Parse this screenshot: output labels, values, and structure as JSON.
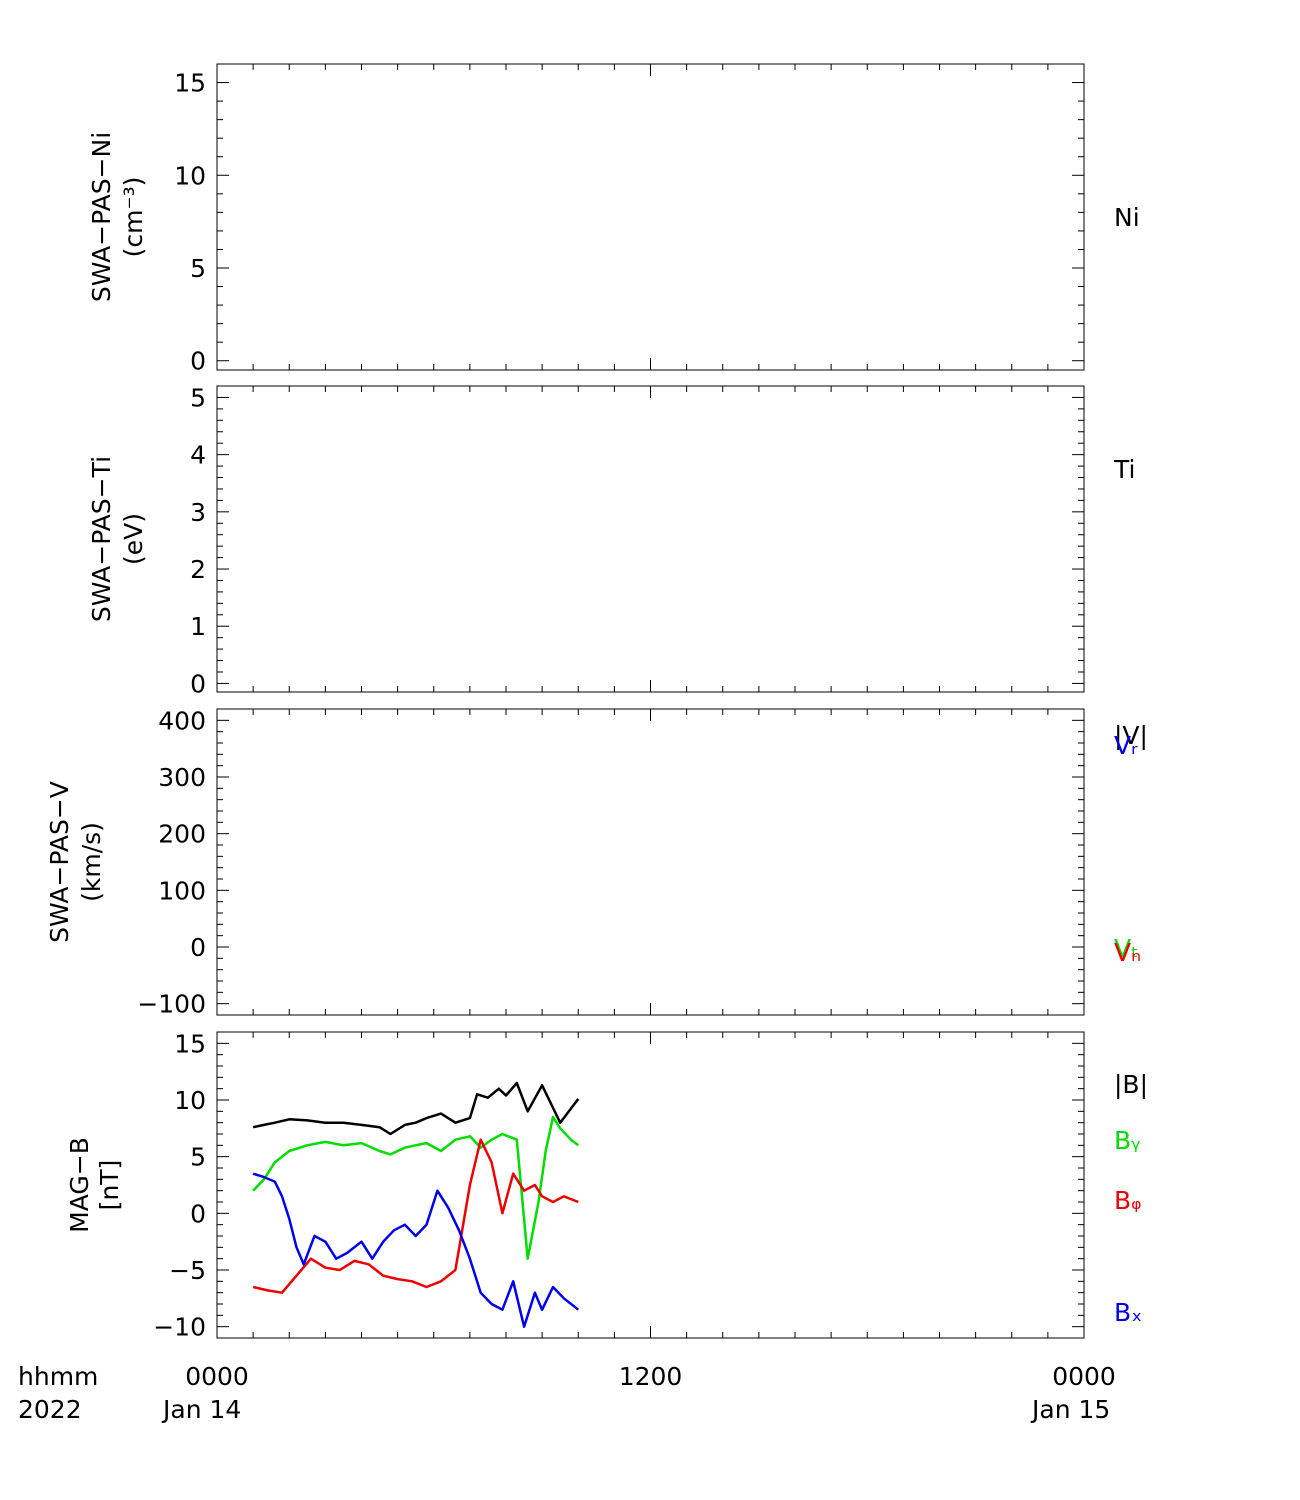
{
  "footer": {
    "time_label": "hhmm",
    "year_label": "2022",
    "date_start": "Jan 14",
    "date_end": "Jan 15"
  },
  "x_axis": {
    "range_hours": [
      0,
      24
    ],
    "major_ticks": [
      {
        "hour": 0,
        "label": "0000"
      },
      {
        "hour": 12,
        "label": "1200"
      },
      {
        "hour": 24,
        "label": "0000"
      }
    ],
    "minor_tick_every_hours": 1
  },
  "colors": {
    "black": "#000000",
    "green": "#00dd00",
    "red": "#ee0000",
    "blue": "#0000ee"
  },
  "chart_data": [
    {
      "type": "line",
      "ylabel": "SWA−PAS−Ni",
      "ylabel2": "(cm⁻³)",
      "ylim": [
        -0.5,
        16
      ],
      "yticks": [
        0,
        5,
        10,
        15
      ],
      "series": [],
      "legend": [
        {
          "label": "Ni",
          "color": "#000000"
        }
      ]
    },
    {
      "type": "line",
      "ylabel": "SWA−PAS−Ti",
      "ylabel2": "(eV)",
      "ylim": [
        -0.15,
        5.2
      ],
      "yticks": [
        0,
        1,
        2,
        3,
        4,
        5
      ],
      "series": [],
      "legend": [
        {
          "label": "Ti",
          "color": "#000000"
        }
      ]
    },
    {
      "type": "line",
      "ylabel": "SWA−PAS−V",
      "ylabel2": "(km/s)",
      "ylim": [
        -120,
        420
      ],
      "yticks": [
        -100,
        0,
        100,
        200,
        300,
        400
      ],
      "series": [],
      "legend": [
        {
          "label": "|V|",
          "color": "#000000"
        },
        {
          "label": "Vᵣ",
          "color": "#0000ee"
        },
        {
          "label": "Vₜ",
          "color": "#00dd00"
        },
        {
          "label": "Vₙ",
          "color": "#ee0000"
        }
      ]
    },
    {
      "type": "line",
      "ylabel": "MAG−B",
      "ylabel2": "[nT]",
      "ylim": [
        -11,
        16
      ],
      "yticks": [
        -10,
        -5,
        0,
        5,
        10,
        15
      ],
      "legend": [
        {
          "label": "|B|",
          "color": "#000000"
        },
        {
          "label": "Bᵧ",
          "color": "#00dd00"
        },
        {
          "label": "Bᵩ",
          "color": "#ee0000"
        },
        {
          "label": "Bₓ",
          "color": "#0000ee"
        }
      ],
      "series": [
        {
          "name": "|B|",
          "color": "#000000",
          "x": [
            1.0,
            1.3,
            1.6,
            2.0,
            2.5,
            3.0,
            3.5,
            4.0,
            4.5,
            4.8,
            5.2,
            5.5,
            5.8,
            6.2,
            6.6,
            7.0,
            7.2,
            7.5,
            7.8,
            8.0,
            8.3,
            8.6,
            9.0,
            9.5,
            10.0
          ],
          "y": [
            7.6,
            7.8,
            8.0,
            8.3,
            8.2,
            8.0,
            8.0,
            7.8,
            7.6,
            7.0,
            7.8,
            8.0,
            8.4,
            8.8,
            8.0,
            8.4,
            10.5,
            10.2,
            11.0,
            10.4,
            11.5,
            9.0,
            11.3,
            8.0,
            10.1
          ]
        },
        {
          "name": "B_Y",
          "color": "#00dd00",
          "x": [
            1.0,
            1.3,
            1.6,
            2.0,
            2.5,
            3.0,
            3.5,
            4.0,
            4.5,
            4.8,
            5.2,
            5.5,
            5.8,
            6.2,
            6.6,
            7.0,
            7.3,
            7.6,
            7.9,
            8.3,
            8.6,
            8.9,
            9.1,
            9.3,
            9.5,
            9.8,
            10.0
          ],
          "y": [
            2.0,
            3.0,
            4.5,
            5.5,
            6.0,
            6.3,
            6.0,
            6.2,
            5.5,
            5.2,
            5.8,
            6.0,
            6.2,
            5.5,
            6.5,
            6.8,
            5.8,
            6.5,
            7.0,
            6.5,
            -4.0,
            1.0,
            5.5,
            8.5,
            7.5,
            6.5,
            6.0
          ]
        },
        {
          "name": "B_Z",
          "color": "#ee0000",
          "x": [
            1.0,
            1.4,
            1.8,
            2.2,
            2.6,
            3.0,
            3.4,
            3.8,
            4.2,
            4.6,
            5.0,
            5.4,
            5.8,
            6.2,
            6.6,
            7.0,
            7.3,
            7.6,
            7.9,
            8.2,
            8.5,
            8.8,
            9.0,
            9.3,
            9.6,
            10.0
          ],
          "y": [
            -6.5,
            -6.8,
            -7.0,
            -5.5,
            -4.0,
            -4.8,
            -5.0,
            -4.2,
            -4.5,
            -5.5,
            -5.8,
            -6.0,
            -6.5,
            -6.0,
            -5.0,
            2.5,
            6.5,
            4.5,
            0.0,
            3.5,
            2.0,
            2.5,
            1.5,
            1.0,
            1.5,
            1.0
          ]
        },
        {
          "name": "B_X",
          "color": "#0000ee",
          "x": [
            1.0,
            1.3,
            1.6,
            1.8,
            2.0,
            2.2,
            2.4,
            2.7,
            3.0,
            3.3,
            3.6,
            4.0,
            4.3,
            4.6,
            4.9,
            5.2,
            5.5,
            5.8,
            6.1,
            6.4,
            6.7,
            7.0,
            7.3,
            7.6,
            7.9,
            8.2,
            8.5,
            8.8,
            9.0,
            9.3,
            9.6,
            10.0
          ],
          "y": [
            3.5,
            3.2,
            2.8,
            1.5,
            -0.5,
            -3.0,
            -4.5,
            -2.0,
            -2.5,
            -4.0,
            -3.5,
            -2.5,
            -4.0,
            -2.5,
            -1.5,
            -1.0,
            -2.0,
            -1.0,
            2.0,
            0.5,
            -1.5,
            -4.0,
            -7.0,
            -8.0,
            -8.5,
            -6.0,
            -10.0,
            -7.0,
            -8.5,
            -6.5,
            -7.5,
            -8.5
          ]
        }
      ]
    }
  ]
}
